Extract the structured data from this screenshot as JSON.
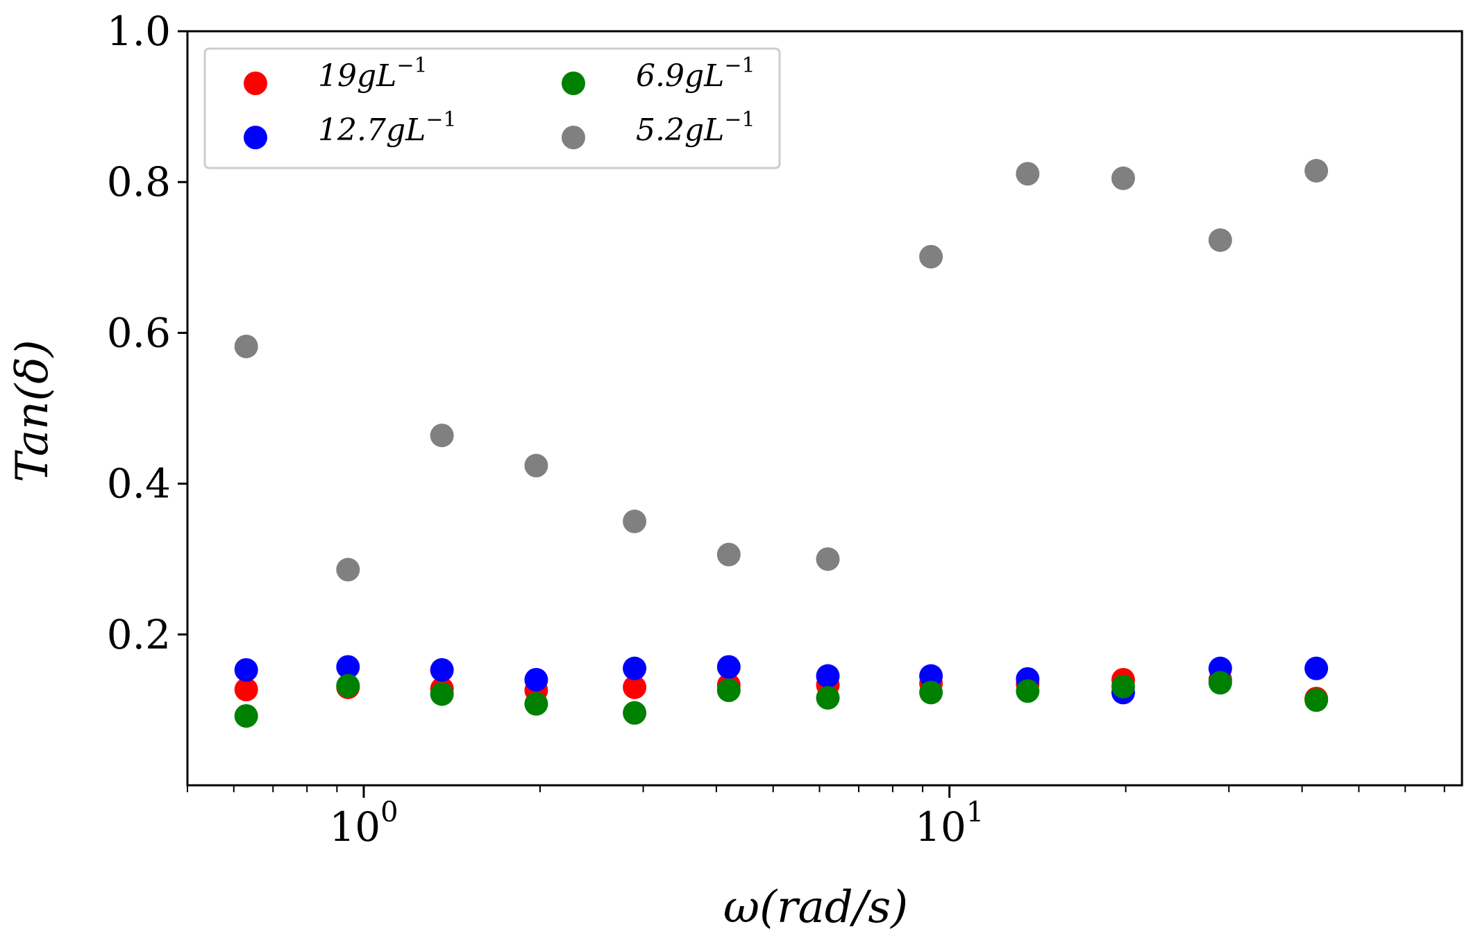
{
  "chart_data": {
    "type": "scatter",
    "xlabel": "ω(rad/s)",
    "ylabel": "Tan(δ)",
    "xscale": "log",
    "xlim": [
      0.5,
      75
    ],
    "ylim": [
      0.0,
      1.0
    ],
    "y_ticks": [
      "0.2",
      "0.4",
      "0.6",
      "0.8",
      "1.0"
    ],
    "x_ticks": [
      {
        "value": 1,
        "base": "10",
        "exp": "0"
      },
      {
        "value": 10,
        "base": "10",
        "exp": "1"
      }
    ],
    "grid": false,
    "legend_position": "top-left",
    "x": [
      0.63,
      0.94,
      1.36,
      1.97,
      2.9,
      4.2,
      6.2,
      9.3,
      13.6,
      19.8,
      29.0,
      42.3
    ],
    "series": [
      {
        "name": "19gL^-1",
        "label_main": "19gL",
        "label_exp": "−1",
        "color": "#ff0000",
        "values": [
          0.127,
          0.13,
          0.128,
          0.126,
          0.13,
          0.133,
          0.133,
          0.135,
          0.134,
          0.14,
          0.14,
          0.115
        ]
      },
      {
        "name": "12.7gL^-1",
        "label_main": "12.7gL",
        "label_exp": "−1",
        "color": "#0000ff",
        "values": [
          0.153,
          0.157,
          0.153,
          0.14,
          0.155,
          0.157,
          0.145,
          0.145,
          0.141,
          0.123,
          0.155,
          0.155
        ]
      },
      {
        "name": "6.9gL^-1",
        "label_main": "6.9gL",
        "label_exp": "−1",
        "color": "#008000",
        "values": [
          0.092,
          0.132,
          0.121,
          0.108,
          0.096,
          0.126,
          0.116,
          0.123,
          0.125,
          0.131,
          0.136,
          0.113
        ]
      },
      {
        "name": "5.2gL^-1",
        "label_main": "5.2gL",
        "label_exp": "−1",
        "color": "#808080",
        "values": [
          0.582,
          0.286,
          0.464,
          0.424,
          0.35,
          0.306,
          0.3,
          0.701,
          0.811,
          0.805,
          0.723,
          0.815
        ]
      }
    ]
  }
}
